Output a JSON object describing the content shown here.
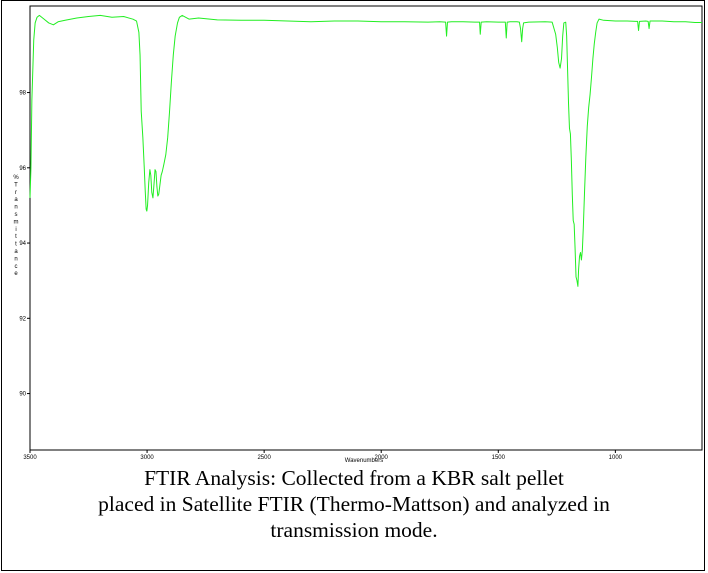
{
  "chart_data": {
    "type": "line",
    "title": "",
    "xlabel": "Wavenumbers",
    "ylabel": "% Transmittance",
    "xlim": [
      3500,
      630
    ],
    "ylim": [
      88.5,
      100.3
    ],
    "x_ticks": [
      3500,
      3000,
      2500,
      2000,
      1500,
      1000
    ],
    "y_ticks": [
      90,
      92,
      94,
      96,
      98
    ],
    "grid": false,
    "series": [
      {
        "color": "#22ee22",
        "points": [
          [
            3500,
            95.2
          ],
          [
            3496,
            96.0
          ],
          [
            3492,
            97.8
          ],
          [
            3488,
            98.6
          ],
          [
            3484,
            99.4
          ],
          [
            3478,
            99.85
          ],
          [
            3470,
            100.0
          ],
          [
            3460,
            100.05
          ],
          [
            3440,
            99.95
          ],
          [
            3420,
            99.85
          ],
          [
            3400,
            99.8
          ],
          [
            3380,
            99.88
          ],
          [
            3350,
            99.92
          ],
          [
            3300,
            99.98
          ],
          [
            3250,
            100.02
          ],
          [
            3200,
            100.05
          ],
          [
            3150,
            100.0
          ],
          [
            3100,
            100.02
          ],
          [
            3060,
            99.95
          ],
          [
            3045,
            99.9
          ],
          [
            3035,
            99.6
          ],
          [
            3030,
            99.0
          ],
          [
            3025,
            97.5
          ],
          [
            3018,
            96.8
          ],
          [
            3012,
            96.0
          ],
          [
            3008,
            95.4
          ],
          [
            3004,
            94.9
          ],
          [
            3001,
            94.85
          ],
          [
            2998,
            95.0
          ],
          [
            2993,
            95.6
          ],
          [
            2988,
            95.95
          ],
          [
            2984,
            95.8
          ],
          [
            2980,
            95.35
          ],
          [
            2975,
            95.2
          ],
          [
            2970,
            95.6
          ],
          [
            2966,
            95.95
          ],
          [
            2962,
            95.9
          ],
          [
            2958,
            95.5
          ],
          [
            2954,
            95.25
          ],
          [
            2950,
            95.3
          ],
          [
            2946,
            95.5
          ],
          [
            2940,
            95.8
          ],
          [
            2935,
            95.9
          ],
          [
            2928,
            96.1
          ],
          [
            2920,
            96.35
          ],
          [
            2912,
            96.8
          ],
          [
            2904,
            97.5
          ],
          [
            2896,
            98.3
          ],
          [
            2888,
            99.0
          ],
          [
            2880,
            99.5
          ],
          [
            2870,
            99.85
          ],
          [
            2862,
            100.0
          ],
          [
            2850,
            100.05
          ],
          [
            2820,
            99.95
          ],
          [
            2780,
            99.98
          ],
          [
            2700,
            99.93
          ],
          [
            2600,
            99.92
          ],
          [
            2500,
            99.92
          ],
          [
            2400,
            99.9
          ],
          [
            2300,
            99.88
          ],
          [
            2200,
            99.9
          ],
          [
            2100,
            99.9
          ],
          [
            2000,
            99.88
          ],
          [
            1900,
            99.88
          ],
          [
            1800,
            99.87
          ],
          [
            1750,
            99.88
          ],
          [
            1725,
            99.87
          ],
          [
            1721,
            99.5
          ],
          [
            1717,
            99.87
          ],
          [
            1700,
            99.88
          ],
          [
            1650,
            99.88
          ],
          [
            1600,
            99.87
          ],
          [
            1580,
            99.87
          ],
          [
            1577,
            99.55
          ],
          [
            1573,
            99.87
          ],
          [
            1550,
            99.88
          ],
          [
            1500,
            99.87
          ],
          [
            1470,
            99.87
          ],
          [
            1466,
            99.45
          ],
          [
            1462,
            99.87
          ],
          [
            1450,
            99.88
          ],
          [
            1420,
            99.88
          ],
          [
            1410,
            99.87
          ],
          [
            1405,
            99.7
          ],
          [
            1400,
            99.35
          ],
          [
            1396,
            99.7
          ],
          [
            1392,
            99.85
          ],
          [
            1370,
            99.87
          ],
          [
            1300,
            99.88
          ],
          [
            1270,
            99.87
          ],
          [
            1262,
            99.7
          ],
          [
            1255,
            99.55
          ],
          [
            1248,
            99.2
          ],
          [
            1242,
            98.8
          ],
          [
            1236,
            98.65
          ],
          [
            1230,
            98.9
          ],
          [
            1225,
            99.5
          ],
          [
            1220,
            99.85
          ],
          [
            1212,
            99.87
          ],
          [
            1208,
            99.5
          ],
          [
            1204,
            98.6
          ],
          [
            1200,
            97.7
          ],
          [
            1196,
            97.05
          ],
          [
            1192,
            96.9
          ],
          [
            1188,
            96.2
          ],
          [
            1184,
            95.3
          ],
          [
            1180,
            94.6
          ],
          [
            1176,
            94.5
          ],
          [
            1172,
            93.85
          ],
          [
            1168,
            93.1
          ],
          [
            1164,
            93.0
          ],
          [
            1160,
            92.85
          ],
          [
            1157,
            93.3
          ],
          [
            1153,
            93.65
          ],
          [
            1149,
            93.75
          ],
          [
            1145,
            93.55
          ],
          [
            1141,
            93.8
          ],
          [
            1137,
            94.4
          ],
          [
            1132,
            95.3
          ],
          [
            1126,
            96.3
          ],
          [
            1120,
            97.1
          ],
          [
            1114,
            97.6
          ],
          [
            1108,
            97.95
          ],
          [
            1102,
            98.4
          ],
          [
            1096,
            98.9
          ],
          [
            1090,
            99.3
          ],
          [
            1084,
            99.6
          ],
          [
            1078,
            99.85
          ],
          [
            1070,
            99.95
          ],
          [
            1050,
            99.92
          ],
          [
            1000,
            99.9
          ],
          [
            950,
            99.9
          ],
          [
            905,
            99.89
          ],
          [
            901,
            99.65
          ],
          [
            897,
            99.89
          ],
          [
            870,
            99.9
          ],
          [
            860,
            99.89
          ],
          [
            856,
            99.7
          ],
          [
            852,
            99.9
          ],
          [
            800,
            99.9
          ],
          [
            750,
            99.88
          ],
          [
            700,
            99.88
          ],
          [
            660,
            99.86
          ],
          [
            630,
            99.86
          ]
        ]
      }
    ]
  },
  "caption": {
    "line1": "FTIR Analysis: Collected from a KBR salt pellet",
    "line2": "placed in Satellite FTIR (Thermo-Mattson) and analyzed in",
    "line3": "transmission mode."
  }
}
